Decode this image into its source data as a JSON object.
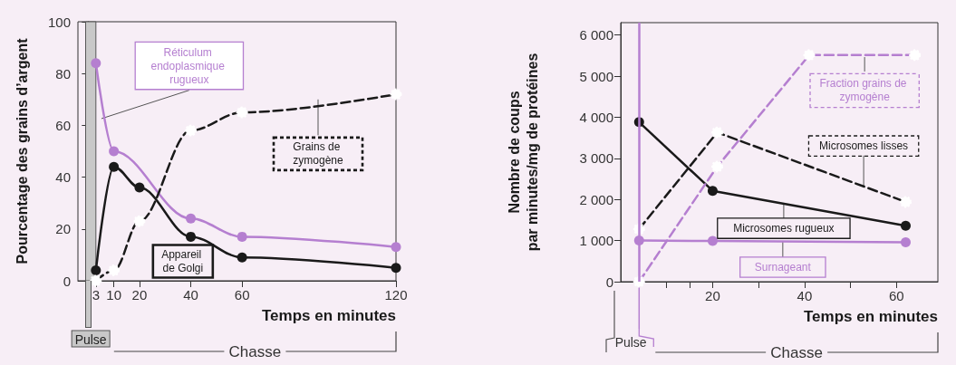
{
  "chart_data": [
    {
      "type": "line",
      "xlabel": "Temps en minutes",
      "ylabel": "Pourcentage des grains d’argent",
      "xlim": [
        -4,
        120
      ],
      "xticks": [
        3,
        10,
        20,
        40,
        60,
        120
      ],
      "ylim": [
        0,
        100
      ],
      "yticks": [
        0,
        20,
        40,
        60,
        80,
        100
      ],
      "grid": false,
      "legend": false,
      "marker": "circle",
      "line_style": "solid",
      "series": [
        {
          "name": "Réticulum endoplasmique rugueux",
          "color": "#b57fd0",
          "x": [
            3,
            10,
            40,
            60,
            120
          ],
          "values": [
            84,
            50,
            24,
            17,
            13
          ]
        },
        {
          "name": "Appareil de Golgi",
          "color": "#1a1a1a",
          "x": [
            3,
            10,
            20,
            40,
            60,
            120
          ],
          "values": [
            4,
            44,
            36,
            17,
            9,
            5
          ]
        },
        {
          "name": "Grains de zymogène",
          "color": "#1a1a1a",
          "line_style": "dashed",
          "x": [
            3,
            10,
            20,
            40,
            60,
            120
          ],
          "values": [
            0,
            4,
            23,
            58,
            65,
            72
          ]
        }
      ],
      "bands": [
        {
          "axis": "x",
          "from": -1,
          "to": 3,
          "label": "Pulse",
          "color": "#c8c8c8"
        }
      ],
      "annotations": [
        "Chasse"
      ]
    },
    {
      "type": "line",
      "xlabel": "Temps en minutes",
      "ylabel": "Nombre de coups\npar minutes/mg de protéines",
      "xlim": [
        0,
        69
      ],
      "xticks": [
        {
          "value": 10,
          "label": null
        },
        {
          "value": 15,
          "label": null
        },
        20,
        {
          "value": 30,
          "label": null
        },
        40,
        {
          "value": 50,
          "label": null
        },
        60
      ],
      "ylim": [
        0,
        6300
      ],
      "yticks": [
        0,
        {
          "value": 1000,
          "label": "1 000"
        },
        {
          "value": 2000,
          "label": "2 000"
        },
        {
          "value": 3000,
          "label": "3 000"
        },
        {
          "value": 4000,
          "label": "4 000"
        },
        {
          "value": 5000,
          "label": "5 000"
        },
        {
          "value": 6000,
          "label": "6 000"
        }
      ],
      "grid": false,
      "legend": false,
      "marker": "circle",
      "line_style": "solid",
      "series": [
        {
          "name": "Microsomes rugueux",
          "color": "#1a1a1a",
          "x": [
            4,
            20,
            62
          ],
          "values": [
            3880,
            2210,
            1360
          ]
        },
        {
          "name": "Microsomes lisses",
          "color": "#1a1a1a",
          "line_style": "dashed",
          "x": [
            4,
            21,
            62
          ],
          "values": [
            1280,
            3630,
            1940
          ]
        },
        {
          "name": "Fraction grains de zymogène",
          "color": "#b57fd0",
          "line_style": "dashed",
          "x": [
            4,
            21,
            41,
            64
          ],
          "values": [
            0,
            2800,
            5510,
            5510
          ]
        },
        {
          "name": "Surnageant",
          "color": "#b57fd0",
          "x": [
            4,
            20,
            62
          ],
          "values": [
            1000,
            990,
            960
          ]
        }
      ],
      "ref_lines": [
        {
          "axis": "x",
          "value": 4,
          "label": "Pulse",
          "color": "#b57fd0"
        }
      ],
      "annotations": [
        "Chasse"
      ]
    }
  ]
}
